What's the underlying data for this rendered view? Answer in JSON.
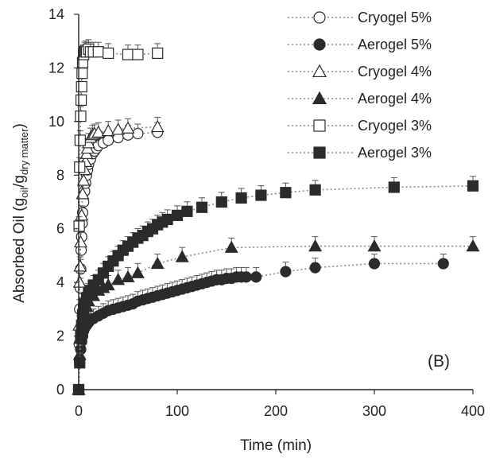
{
  "chart_data": {
    "type": "scatter",
    "xlabel": "Time (min)",
    "ylabel_parts": [
      "Absorbed Oil (g",
      "oil",
      "/g",
      "dry matter",
      ")"
    ],
    "xlim": [
      0,
      400
    ],
    "ylim": [
      0,
      14
    ],
    "xticks": [
      0,
      100,
      200,
      300,
      400
    ],
    "yticks": [
      0,
      2,
      4,
      6,
      8,
      10,
      12,
      14
    ],
    "panel_label": "(B)",
    "grid": false,
    "legend_position": "top-right",
    "series": [
      {
        "name": "Cryogel 5%",
        "marker": "circle",
        "filled": false,
        "x": [
          0,
          0.5,
          1,
          1.5,
          2,
          2.5,
          3,
          3.5,
          4,
          5,
          6,
          7,
          8,
          9,
          10,
          12,
          14,
          16,
          18,
          20,
          25,
          30,
          40,
          50,
          60,
          80
        ],
        "y": [
          0,
          1.7,
          3.0,
          3.8,
          4.5,
          5.2,
          5.7,
          6.2,
          6.6,
          7.0,
          7.4,
          7.7,
          8.0,
          8.2,
          8.4,
          8.6,
          8.8,
          8.9,
          9.0,
          9.1,
          9.2,
          9.3,
          9.4,
          9.5,
          9.55,
          9.6
        ]
      },
      {
        "name": "Aerogel 5%",
        "marker": "circle",
        "filled": true,
        "x": [
          0,
          1,
          2,
          3,
          4,
          5,
          6,
          8,
          10,
          12,
          15,
          20,
          25,
          30,
          35,
          40,
          45,
          50,
          55,
          60,
          65,
          70,
          75,
          80,
          85,
          90,
          95,
          100,
          105,
          110,
          115,
          120,
          125,
          130,
          135,
          140,
          145,
          150,
          155,
          160,
          165,
          170,
          180,
          210,
          240,
          300,
          370
        ],
        "y": [
          0,
          1.0,
          1.5,
          1.8,
          2.0,
          2.2,
          2.3,
          2.4,
          2.5,
          2.6,
          2.65,
          2.75,
          2.85,
          2.95,
          3.0,
          3.05,
          3.1,
          3.15,
          3.2,
          3.3,
          3.35,
          3.4,
          3.45,
          3.5,
          3.55,
          3.6,
          3.65,
          3.7,
          3.75,
          3.8,
          3.85,
          3.9,
          3.95,
          4.0,
          4.05,
          4.1,
          4.1,
          4.15,
          4.15,
          4.2,
          4.2,
          4.2,
          4.2,
          4.4,
          4.55,
          4.7,
          4.7
        ]
      },
      {
        "name": "Cryogel 4%",
        "marker": "triangle",
        "filled": false,
        "x": [
          0,
          0.5,
          1,
          1.5,
          2,
          3,
          4,
          5,
          6,
          7,
          8,
          9,
          10,
          12,
          14,
          16,
          20,
          30,
          40,
          50,
          80
        ],
        "y": [
          0,
          2.4,
          4.0,
          4.6,
          5.5,
          6.5,
          7.3,
          7.8,
          8.2,
          8.5,
          8.8,
          9.0,
          9.2,
          9.4,
          9.5,
          9.55,
          9.6,
          9.65,
          9.7,
          9.75,
          9.8
        ]
      },
      {
        "name": "Aerogel 4%",
        "marker": "triangle",
        "filled": true,
        "x": [
          0,
          1,
          2,
          3,
          4,
          5,
          6,
          8,
          10,
          15,
          20,
          25,
          30,
          40,
          50,
          60,
          80,
          105,
          155,
          240,
          300,
          400
        ],
        "y": [
          0,
          1.3,
          1.9,
          2.2,
          2.5,
          2.7,
          2.9,
          3.1,
          3.3,
          3.5,
          3.7,
          3.8,
          3.9,
          4.1,
          4.2,
          4.35,
          4.7,
          4.95,
          5.3,
          5.35,
          5.35,
          5.35
        ]
      },
      {
        "name": "Cryogel 3%",
        "marker": "square",
        "filled": false,
        "x": [
          0,
          0.5,
          1,
          1.5,
          2,
          2.5,
          3,
          3.5,
          4,
          5,
          6,
          7,
          8,
          10,
          12,
          15,
          20,
          30,
          50,
          60,
          80
        ],
        "y": [
          0,
          6.1,
          8.3,
          9.3,
          10.2,
          10.8,
          11.3,
          11.8,
          12.2,
          12.5,
          12.6,
          12.65,
          12.6,
          12.7,
          12.6,
          12.6,
          12.6,
          12.55,
          12.5,
          12.5,
          12.55
        ]
      },
      {
        "name": "Aerogel 3%",
        "marker": "square",
        "filled": true,
        "x": [
          0,
          1,
          2,
          3,
          4,
          5,
          6,
          8,
          10,
          12,
          15,
          20,
          25,
          30,
          35,
          40,
          45,
          50,
          55,
          60,
          65,
          70,
          75,
          80,
          85,
          90,
          100,
          110,
          125,
          145,
          165,
          185,
          210,
          240,
          320,
          400
        ],
        "y": [
          0,
          1.0,
          2.0,
          2.4,
          2.8,
          3.0,
          3.2,
          3.4,
          3.6,
          3.7,
          3.9,
          4.1,
          4.35,
          4.6,
          4.8,
          5.0,
          5.2,
          5.35,
          5.5,
          5.65,
          5.75,
          5.9,
          6.0,
          6.15,
          6.25,
          6.35,
          6.5,
          6.65,
          6.8,
          7.0,
          7.15,
          7.25,
          7.35,
          7.45,
          7.55,
          7.6
        ]
      }
    ]
  }
}
